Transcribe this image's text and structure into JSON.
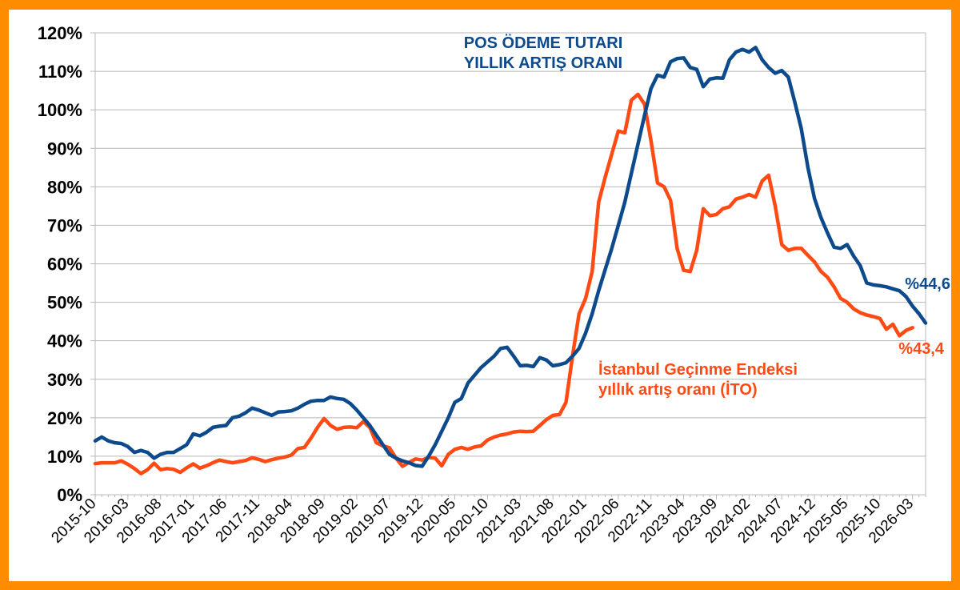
{
  "chart_data": {
    "type": "line",
    "ylim": [
      0,
      120
    ],
    "y_ticks": [
      "0%",
      "10%",
      "20%",
      "30%",
      "40%",
      "50%",
      "60%",
      "70%",
      "80%",
      "90%",
      "100%",
      "110%",
      "120%"
    ],
    "x_tick_labels": [
      "2015-10",
      "2016-03",
      "2016-08",
      "2017-01",
      "2017-06",
      "2017-11",
      "2018-04",
      "2018-09",
      "2019-02",
      "2019-07",
      "2019-12",
      "2020-05",
      "2020-10",
      "2021-03",
      "2021-08",
      "2022-01",
      "2022-06",
      "2022-11",
      "2023-04",
      "2023-09",
      "2024-02",
      "2024-07",
      "2024-12",
      "2025-05",
      "2025-10",
      "2026-03"
    ],
    "grid": true,
    "colors": {
      "pos": "#0d4a8c",
      "ito": "#ff4a14",
      "frame": "#ff8c00"
    },
    "series": [
      {
        "key": "pos",
        "label_lines": [
          "POS ÖDEME TUTARI",
          "YILLIK ARTIŞ ORANI"
        ],
        "end_label": "%44,6",
        "points": [
          [
            0,
            14
          ],
          [
            1,
            15
          ],
          [
            2,
            14
          ],
          [
            3,
            13.5
          ],
          [
            4,
            13.3
          ],
          [
            5,
            12.5
          ],
          [
            6,
            11
          ],
          [
            7,
            11.5
          ],
          [
            8,
            11
          ],
          [
            9,
            9.5
          ],
          [
            10,
            10.5
          ],
          [
            11,
            11
          ],
          [
            12,
            11
          ],
          [
            13,
            12
          ],
          [
            14,
            13
          ],
          [
            15,
            15.8
          ],
          [
            16,
            15.3
          ],
          [
            17,
            16.2
          ],
          [
            18,
            17.5
          ],
          [
            19,
            17.8
          ],
          [
            20,
            18
          ],
          [
            21,
            20
          ],
          [
            22,
            20.4
          ],
          [
            23,
            21.3
          ],
          [
            24,
            22.5
          ],
          [
            25,
            22
          ],
          [
            26,
            21.3
          ],
          [
            27,
            20.6
          ],
          [
            28,
            21.5
          ],
          [
            29,
            21.6
          ],
          [
            30,
            21.8
          ],
          [
            31,
            22.5
          ],
          [
            32,
            23.5
          ],
          [
            33,
            24.3
          ],
          [
            34,
            24.5
          ],
          [
            35,
            24.5
          ],
          [
            36,
            25.4
          ],
          [
            37,
            25
          ],
          [
            38,
            24.8
          ],
          [
            39,
            23.7
          ],
          [
            40,
            22
          ],
          [
            41,
            20
          ],
          [
            42,
            18
          ],
          [
            43,
            15.5
          ],
          [
            44,
            13
          ],
          [
            45,
            10.5
          ],
          [
            46,
            9.5
          ],
          [
            47,
            8.8
          ],
          [
            48,
            8.3
          ],
          [
            49,
            7.6
          ],
          [
            50,
            7.4
          ],
          [
            51,
            10
          ],
          [
            52,
            13
          ],
          [
            53,
            16.5
          ],
          [
            54,
            20
          ],
          [
            55,
            24
          ],
          [
            56,
            25
          ],
          [
            57,
            29
          ],
          [
            58,
            31
          ],
          [
            59,
            33
          ],
          [
            60,
            34.5
          ],
          [
            61,
            36
          ],
          [
            62,
            38
          ],
          [
            63,
            38.3
          ],
          [
            64,
            36
          ],
          [
            65,
            33.5
          ],
          [
            66,
            33.6
          ],
          [
            67,
            33.3
          ],
          [
            68,
            35.6
          ],
          [
            69,
            35
          ],
          [
            70,
            33.5
          ],
          [
            71,
            33.8
          ],
          [
            72,
            34.3
          ],
          [
            73,
            36
          ],
          [
            74,
            38
          ],
          [
            75,
            42
          ],
          [
            76,
            47
          ],
          [
            77,
            53
          ],
          [
            78,
            58.5
          ],
          [
            79,
            64
          ],
          [
            80,
            70
          ],
          [
            81,
            76
          ],
          [
            82,
            83.5
          ],
          [
            83,
            91
          ],
          [
            84,
            98.5
          ],
          [
            85,
            105.5
          ],
          [
            86,
            109
          ],
          [
            87,
            108.5
          ],
          [
            88,
            112.5
          ],
          [
            89,
            113.3
          ],
          [
            90,
            113.5
          ],
          [
            91,
            111
          ],
          [
            92,
            110.5
          ],
          [
            93,
            106
          ],
          [
            94,
            108
          ],
          [
            95,
            108.3
          ],
          [
            96,
            108.2
          ],
          [
            97,
            113
          ],
          [
            98,
            115
          ],
          [
            99,
            115.7
          ],
          [
            100,
            115
          ],
          [
            101,
            116.2
          ],
          [
            102,
            113
          ],
          [
            103,
            111
          ],
          [
            104,
            109.5
          ],
          [
            105,
            110.2
          ],
          [
            106,
            108.5
          ],
          [
            107,
            102
          ],
          [
            108,
            95
          ],
          [
            109,
            85
          ],
          [
            110,
            77
          ],
          [
            111,
            72
          ],
          [
            112,
            68
          ],
          [
            113,
            64.3
          ],
          [
            114,
            64
          ],
          [
            115,
            65
          ],
          [
            116,
            62
          ],
          [
            117,
            59.5
          ],
          [
            118,
            55
          ],
          [
            119,
            54.5
          ],
          [
            120,
            54.3
          ],
          [
            121,
            54
          ],
          [
            122,
            53.5
          ],
          [
            123,
            53
          ],
          [
            124,
            51.5
          ],
          [
            125,
            49
          ],
          [
            126,
            47
          ],
          [
            127,
            44.6
          ]
        ]
      },
      {
        "key": "ito",
        "label_lines": [
          "İstanbul Geçinme Endeksi",
          "yıllık artış oranı (İTO)"
        ],
        "end_label": "%43,4",
        "points": [
          [
            0,
            8.1
          ],
          [
            1,
            8.3
          ],
          [
            2,
            8.3
          ],
          [
            3,
            8.3
          ],
          [
            4,
            8.8
          ],
          [
            5,
            7.9
          ],
          [
            6,
            6.8
          ],
          [
            7,
            5.5
          ],
          [
            8,
            6.5
          ],
          [
            9,
            8.2
          ],
          [
            10,
            6.5
          ],
          [
            11,
            6.8
          ],
          [
            12,
            6.6
          ],
          [
            13,
            5.8
          ],
          [
            14,
            7
          ],
          [
            15,
            8
          ],
          [
            16,
            6.9
          ],
          [
            17,
            7.5
          ],
          [
            18,
            8.3
          ],
          [
            19,
            9
          ],
          [
            20,
            8.6
          ],
          [
            21,
            8.3
          ],
          [
            22,
            8.6
          ],
          [
            23,
            8.9
          ],
          [
            24,
            9.6
          ],
          [
            25,
            9.2
          ],
          [
            26,
            8.6
          ],
          [
            27,
            9.1
          ],
          [
            28,
            9.5
          ],
          [
            29,
            9.8
          ],
          [
            30,
            10.3
          ],
          [
            31,
            12
          ],
          [
            32,
            12.3
          ],
          [
            33,
            14.7
          ],
          [
            34,
            17.5
          ],
          [
            35,
            19.8
          ],
          [
            36,
            18
          ],
          [
            37,
            17
          ],
          [
            38,
            17.5
          ],
          [
            39,
            17.6
          ],
          [
            40,
            17.4
          ],
          [
            41,
            19
          ],
          [
            42,
            17.5
          ],
          [
            43,
            13.5
          ],
          [
            44,
            12.7
          ],
          [
            45,
            12.2
          ],
          [
            46,
            9.5
          ],
          [
            47,
            7.4
          ],
          [
            48,
            8.4
          ],
          [
            49,
            9.3
          ],
          [
            50,
            9
          ],
          [
            51,
            9.7
          ],
          [
            52,
            9.5
          ],
          [
            53,
            7.5
          ],
          [
            54,
            10.5
          ],
          [
            55,
            11.8
          ],
          [
            56,
            12.3
          ],
          [
            57,
            11.8
          ],
          [
            58,
            12.4
          ],
          [
            59,
            12.7
          ],
          [
            60,
            14.2
          ],
          [
            61,
            15
          ],
          [
            62,
            15.5
          ],
          [
            63,
            15.8
          ],
          [
            64,
            16.3
          ],
          [
            65,
            16.5
          ],
          [
            66,
            16.4
          ],
          [
            67,
            16.5
          ],
          [
            68,
            18
          ],
          [
            69,
            19.5
          ],
          [
            70,
            20.6
          ],
          [
            71,
            20.8
          ],
          [
            72,
            24
          ],
          [
            73,
            36
          ],
          [
            74,
            47
          ],
          [
            75,
            51
          ],
          [
            76,
            58
          ],
          [
            77,
            76
          ],
          [
            78,
            82.5
          ],
          [
            79,
            88.5
          ],
          [
            80,
            94.5
          ],
          [
            81,
            94
          ],
          [
            82,
            102.5
          ],
          [
            83,
            104
          ],
          [
            84,
            101.5
          ],
          [
            85,
            92
          ],
          [
            86,
            81
          ],
          [
            87,
            80
          ],
          [
            88,
            76.5
          ],
          [
            89,
            64
          ],
          [
            90,
            58.3
          ],
          [
            91,
            58
          ],
          [
            92,
            63.5
          ],
          [
            93,
            74.3
          ],
          [
            94,
            72.5
          ],
          [
            95,
            72.8
          ],
          [
            96,
            74.3
          ],
          [
            97,
            74.8
          ],
          [
            98,
            76.8
          ],
          [
            99,
            77.3
          ],
          [
            100,
            78
          ],
          [
            101,
            77.3
          ],
          [
            102,
            81.5
          ],
          [
            103,
            83
          ],
          [
            104,
            75
          ],
          [
            105,
            65
          ],
          [
            106,
            63.5
          ],
          [
            107,
            64
          ],
          [
            108,
            64
          ],
          [
            109,
            62.2
          ],
          [
            110,
            60.5
          ],
          [
            111,
            58
          ],
          [
            112,
            56.5
          ],
          [
            113,
            54
          ],
          [
            114,
            51
          ],
          [
            115,
            50
          ],
          [
            116,
            48.3
          ],
          [
            117,
            47.3
          ],
          [
            118,
            46.7
          ],
          [
            119,
            46.3
          ],
          [
            120,
            45.8
          ],
          [
            121,
            43
          ],
          [
            122,
            44.3
          ],
          [
            123,
            41.3
          ],
          [
            124,
            42.7
          ],
          [
            125,
            43.4
          ]
        ]
      }
    ]
  }
}
